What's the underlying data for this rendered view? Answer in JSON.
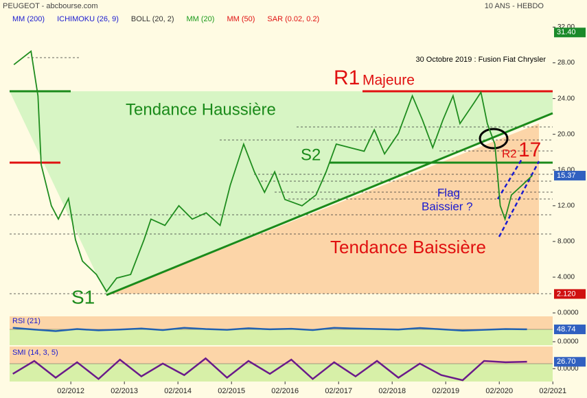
{
  "header": {
    "source": "PEUGEOT - abcbourse.com",
    "period": "10 ANS - HEBDO",
    "indicators": [
      {
        "name": "MM (200)",
        "color": "#1a1ad0"
      },
      {
        "name": "ICHIMOKU (26, 9)",
        "color": "#1a1ad0"
      },
      {
        "name": "BOLL (20, 2)",
        "color": "#333333"
      },
      {
        "name": "MM (20)",
        "color": "#1a9a1a"
      },
      {
        "name": "MM (50)",
        "color": "#e01010"
      },
      {
        "name": "SAR (0.02, 0.2)",
        "color": "#e01010"
      }
    ]
  },
  "chart_data": [
    {
      "type": "line",
      "title": "PEUGEOT",
      "annotations": {
        "news": "30 Octobre 2019 : Fusion Fiat Chrysler",
        "r1": "R1",
        "r1_note": "Majeure",
        "up": "Tendance Haussière",
        "s2": "S2",
        "r2": "R2",
        "r2_level": "17",
        "flag": "Flag",
        "flag_note": "Baissier ?",
        "down": "Tendance Baissière",
        "s1": "S1"
      },
      "xlim": [
        2010.94,
        2021.08
      ],
      "ylim": [
        0,
        33.5
      ],
      "yticks": [
        {
          "value": 32,
          "label": "32.00"
        },
        {
          "value": 28,
          "label": "28.00"
        },
        {
          "value": 24,
          "label": "24.00"
        },
        {
          "value": 20,
          "label": "20.00"
        },
        {
          "value": 16,
          "label": "16.00"
        },
        {
          "value": 12,
          "label": "12.00"
        },
        {
          "value": 8,
          "label": "8.000"
        },
        {
          "value": 4,
          "label": "4.000"
        },
        {
          "value": 0,
          "label": "0.0000"
        }
      ],
      "markers": [
        {
          "value": 31.4,
          "label": "31.40",
          "color": "#1a8a2a"
        },
        {
          "value": 15.37,
          "label": "15.37",
          "color": "#3060c0"
        },
        {
          "value": 2.12,
          "label": "2.120",
          "color": "#d01010"
        }
      ],
      "series": [
        {
          "name": "PEUGEOT",
          "color": "#1e8c1e",
          "x": [
            2011.02,
            2011.34,
            2011.47,
            2011.53,
            2011.72,
            2011.85,
            2012.04,
            2012.17,
            2012.3,
            2012.56,
            2012.75,
            2012.94,
            2013.2,
            2013.45,
            2013.58,
            2013.84,
            2014.1,
            2014.35,
            2014.61,
            2014.87,
            2015.06,
            2015.31,
            2015.51,
            2015.7,
            2015.89,
            2016.08,
            2016.4,
            2016.66,
            2016.85,
            2017.04,
            2017.3,
            2017.56,
            2017.75,
            2017.94,
            2018.2,
            2018.46,
            2018.65,
            2018.84,
            2019.03,
            2019.22,
            2019.35,
            2019.61,
            2019.74,
            2019.86,
            2020.0,
            2020.1,
            2020.19,
            2020.31,
            2020.51,
            2020.7
          ],
          "values": [
            27.8,
            29.3,
            24.3,
            16.6,
            12,
            10.5,
            12.8,
            8.2,
            5.8,
            4.3,
            2.4,
            3.9,
            4.3,
            8.2,
            10.5,
            9.8,
            12,
            10.5,
            11.2,
            9.8,
            14.3,
            18.9,
            15.8,
            13.5,
            15.8,
            12.7,
            12,
            13.2,
            15.8,
            18.9,
            18.5,
            18.1,
            20.5,
            17.8,
            20.1,
            24.3,
            21.6,
            18.5,
            21.6,
            24.3,
            21.2,
            23.5,
            24.7,
            21.2,
            18.9,
            12,
            10.5,
            13.2,
            14.3,
            15.4
          ]
        }
      ]
    },
    {
      "type": "line",
      "title": "RSI (21)",
      "xlim": [
        2010.94,
        2021.08
      ],
      "ylim": [
        -13.5,
        100
      ],
      "yticks": [
        {
          "value": 0,
          "label": "0.0000"
        }
      ],
      "markers": [
        {
          "value": 48.74,
          "label": "48.74",
          "color": "#3060c0"
        }
      ],
      "series": [
        {
          "name": "RSI",
          "color": "#2060b0",
          "x": [
            2011.0,
            2011.4,
            2011.8,
            2012.2,
            2012.6,
            2013.0,
            2013.4,
            2013.8,
            2014.2,
            2014.6,
            2015.0,
            2015.4,
            2015.8,
            2016.2,
            2016.6,
            2017.0,
            2017.4,
            2017.8,
            2018.2,
            2018.6,
            2019.0,
            2019.4,
            2019.8,
            2020.2,
            2020.6
          ],
          "values": [
            55,
            48,
            42,
            50,
            45,
            48,
            52,
            46,
            55,
            50,
            47,
            53,
            49,
            51,
            46,
            55,
            52,
            50,
            48,
            54,
            49,
            44,
            47,
            50,
            49
          ]
        }
      ]
    },
    {
      "type": "line",
      "title": "SMI (14, 3, 5)",
      "xlim": [
        2010.94,
        2021.08
      ],
      "ylim": [
        -50,
        86
      ],
      "yticks": [
        {
          "value": 0,
          "label": "0.0000"
        }
      ],
      "markers": [
        {
          "value": 26.7,
          "label": "26.70",
          "color": "#3060c0"
        }
      ],
      "xticks": [
        {
          "value": 2012.083,
          "label": "02/2012"
        },
        {
          "value": 2013.083,
          "label": "02/2013"
        },
        {
          "value": 2014.083,
          "label": "02/2014"
        },
        {
          "value": 2015.083,
          "label": "02/2015"
        },
        {
          "value": 2016.083,
          "label": "02/2016"
        },
        {
          "value": 2017.083,
          "label": "02/2017"
        },
        {
          "value": 2018.083,
          "label": "02/2018"
        },
        {
          "value": 2019.083,
          "label": "02/2019"
        },
        {
          "value": 2020.083,
          "label": "02/2020"
        },
        {
          "value": 2021.083,
          "label": "02/2021"
        }
      ],
      "series": [
        {
          "name": "SMI",
          "color": "#6a1a8a",
          "x": [
            2011.0,
            2011.4,
            2011.8,
            2012.2,
            2012.6,
            2013.0,
            2013.4,
            2013.8,
            2014.2,
            2014.6,
            2015.0,
            2015.4,
            2015.8,
            2016.2,
            2016.6,
            2017.0,
            2017.4,
            2017.8,
            2018.2,
            2018.6,
            2019.0,
            2019.4,
            2019.8,
            2020.2,
            2020.6
          ],
          "values": [
            -20,
            30,
            -35,
            25,
            -40,
            35,
            -30,
            20,
            -25,
            40,
            -35,
            30,
            -20,
            35,
            -40,
            25,
            -30,
            30,
            -35,
            20,
            -25,
            -45,
            30,
            25,
            27
          ]
        }
      ]
    }
  ]
}
